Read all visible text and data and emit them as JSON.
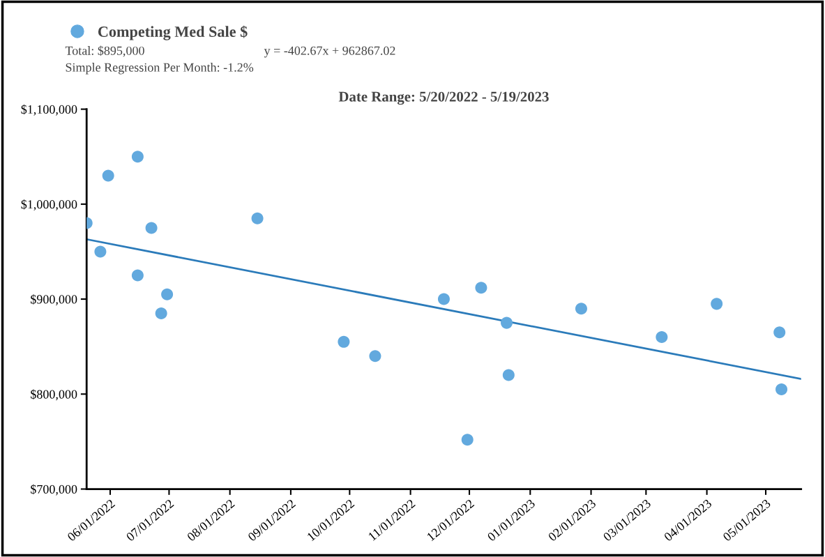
{
  "chart_data": {
    "type": "scatter",
    "title": "Date Range: 5/20/2022 - 5/19/2023",
    "x": [
      "2022-05-20",
      "2022-05-27",
      "2022-05-31",
      "2022-06-15",
      "2022-06-15",
      "2022-06-22",
      "2022-06-27",
      "2022-06-30",
      "2022-08-15",
      "2022-09-28",
      "2022-10-14",
      "2022-11-18",
      "2022-11-30",
      "2022-12-07",
      "2022-12-20",
      "2022-12-21",
      "2023-01-27",
      "2023-03-09",
      "2023-04-06",
      "2023-05-08",
      "2023-05-09"
    ],
    "series": [
      {
        "name": "Competing Med Sale $",
        "color": "#62a9de",
        "marker": "circle",
        "values": [
          980000,
          950000,
          1030000,
          1050000,
          925000,
          975000,
          885000,
          905000,
          985000,
          855000,
          840000,
          900000,
          752000,
          912000,
          875000,
          820000,
          890000,
          860000,
          895000,
          865000,
          805000
        ]
      },
      {
        "type": "line",
        "color": "#2b7bba",
        "x": [
          "2022-05-20",
          "2023-05-19"
        ],
        "values": [
          963000,
          816000
        ]
      }
    ],
    "annotations": [
      "Total: $895,000",
      "y = -402.67x + 962867.02",
      "Simple Regression Per Month: -1.2%"
    ],
    "xlim": [
      "2022-05-20",
      "2023-05-19"
    ],
    "xticks": [
      {
        "value": "2022-06-01",
        "label": "06/01/2022"
      },
      {
        "value": "2022-07-01",
        "label": "07/01/2022"
      },
      {
        "value": "2022-08-01",
        "label": "08/01/2022"
      },
      {
        "value": "2022-09-01",
        "label": "09/01/2022"
      },
      {
        "value": "2022-10-01",
        "label": "10/01/2022"
      },
      {
        "value": "2022-11-01",
        "label": "11/01/2022"
      },
      {
        "value": "2022-12-01",
        "label": "12/01/2022"
      },
      {
        "value": "2023-01-01",
        "label": "01/01/2023"
      },
      {
        "value": "2023-02-01",
        "label": "02/01/2023"
      },
      {
        "value": "2023-03-01",
        "label": "03/01/2023"
      },
      {
        "value": "2023-04-01",
        "label": "04/01/2023"
      },
      {
        "value": "2023-05-01",
        "label": "05/01/2023"
      }
    ],
    "ylim": [
      700000,
      1100000
    ],
    "yticks": [
      {
        "value": 700000,
        "label": "$700,000"
      },
      {
        "value": 800000,
        "label": "$800,000"
      },
      {
        "value": 900000,
        "label": "$900,000"
      },
      {
        "value": 1000000,
        "label": "$1,000,000"
      },
      {
        "value": 1100000,
        "label": "$1,100,000"
      }
    ],
    "grid": false,
    "legend": "top left"
  }
}
